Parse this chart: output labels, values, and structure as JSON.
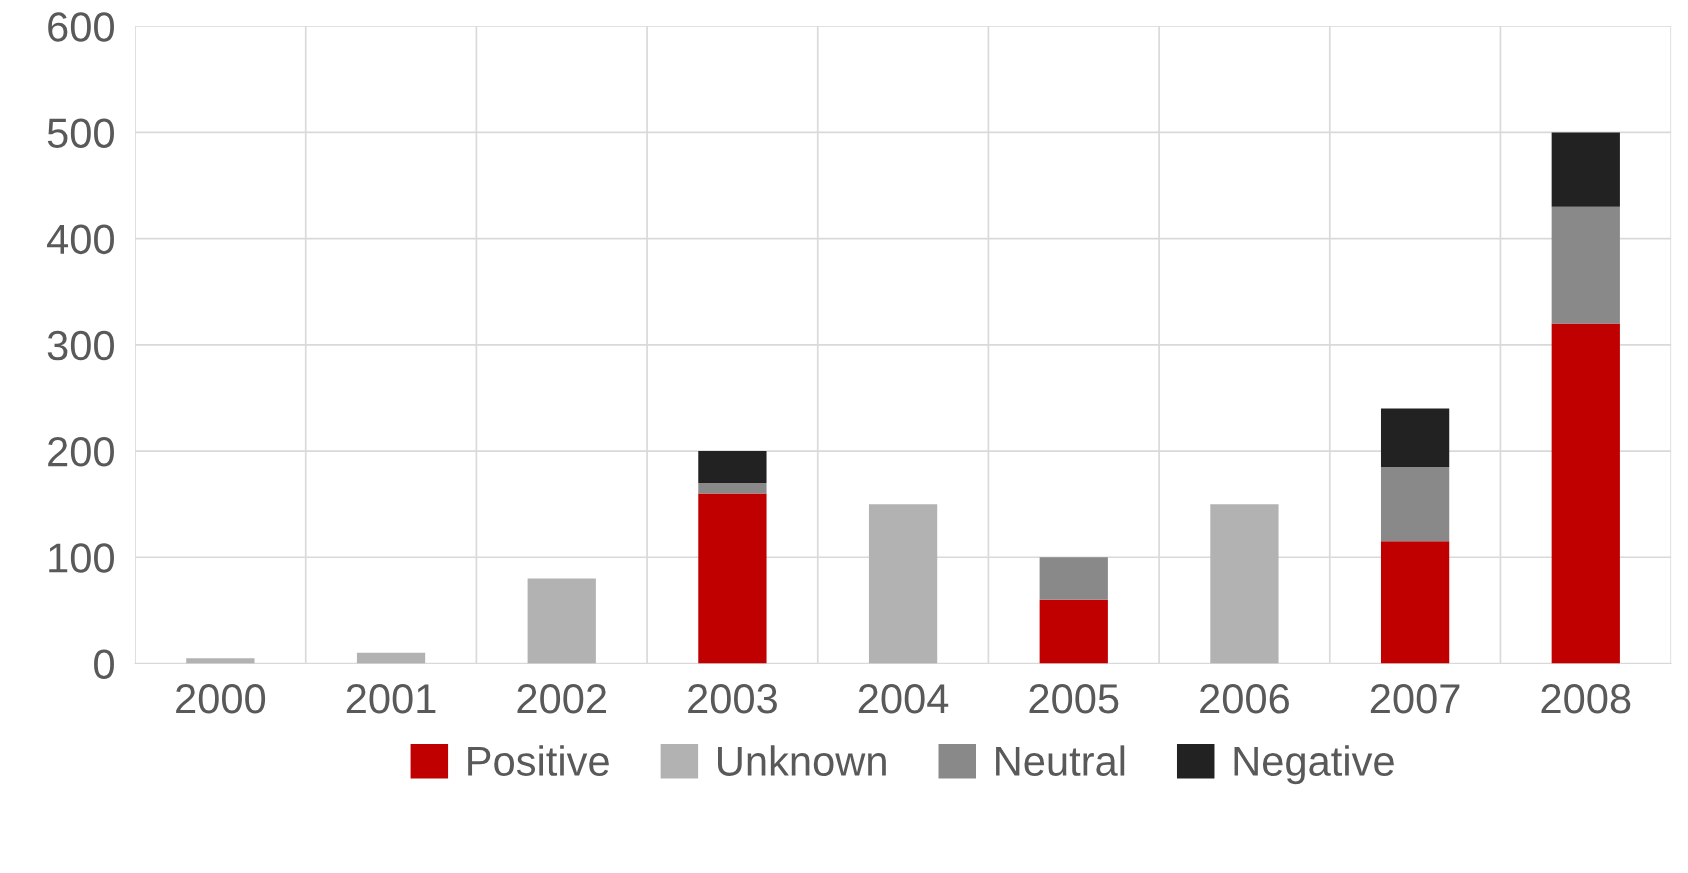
{
  "chart_data": {
    "type": "bar",
    "stacked": true,
    "categories": [
      "2000",
      "2001",
      "2002",
      "2003",
      "2004",
      "2005",
      "2006",
      "2007",
      "2008"
    ],
    "series": [
      {
        "name": "Positive",
        "color": "#c00000",
        "values": [
          0,
          0,
          0,
          160,
          0,
          60,
          0,
          115,
          320
        ]
      },
      {
        "name": "Unknown",
        "color": "#b2b2b2",
        "values": [
          5,
          10,
          80,
          0,
          150,
          0,
          150,
          0,
          0
        ]
      },
      {
        "name": "Neutral",
        "color": "#898989",
        "values": [
          0,
          0,
          0,
          10,
          0,
          40,
          0,
          70,
          110
        ]
      },
      {
        "name": "Negative",
        "color": "#222222",
        "values": [
          0,
          0,
          0,
          30,
          0,
          0,
          0,
          55,
          70
        ]
      }
    ],
    "ylim": [
      0,
      600
    ],
    "yticks": [
      0,
      100,
      200,
      300,
      400,
      500,
      600
    ],
    "grid": true,
    "legend": "bottom"
  }
}
